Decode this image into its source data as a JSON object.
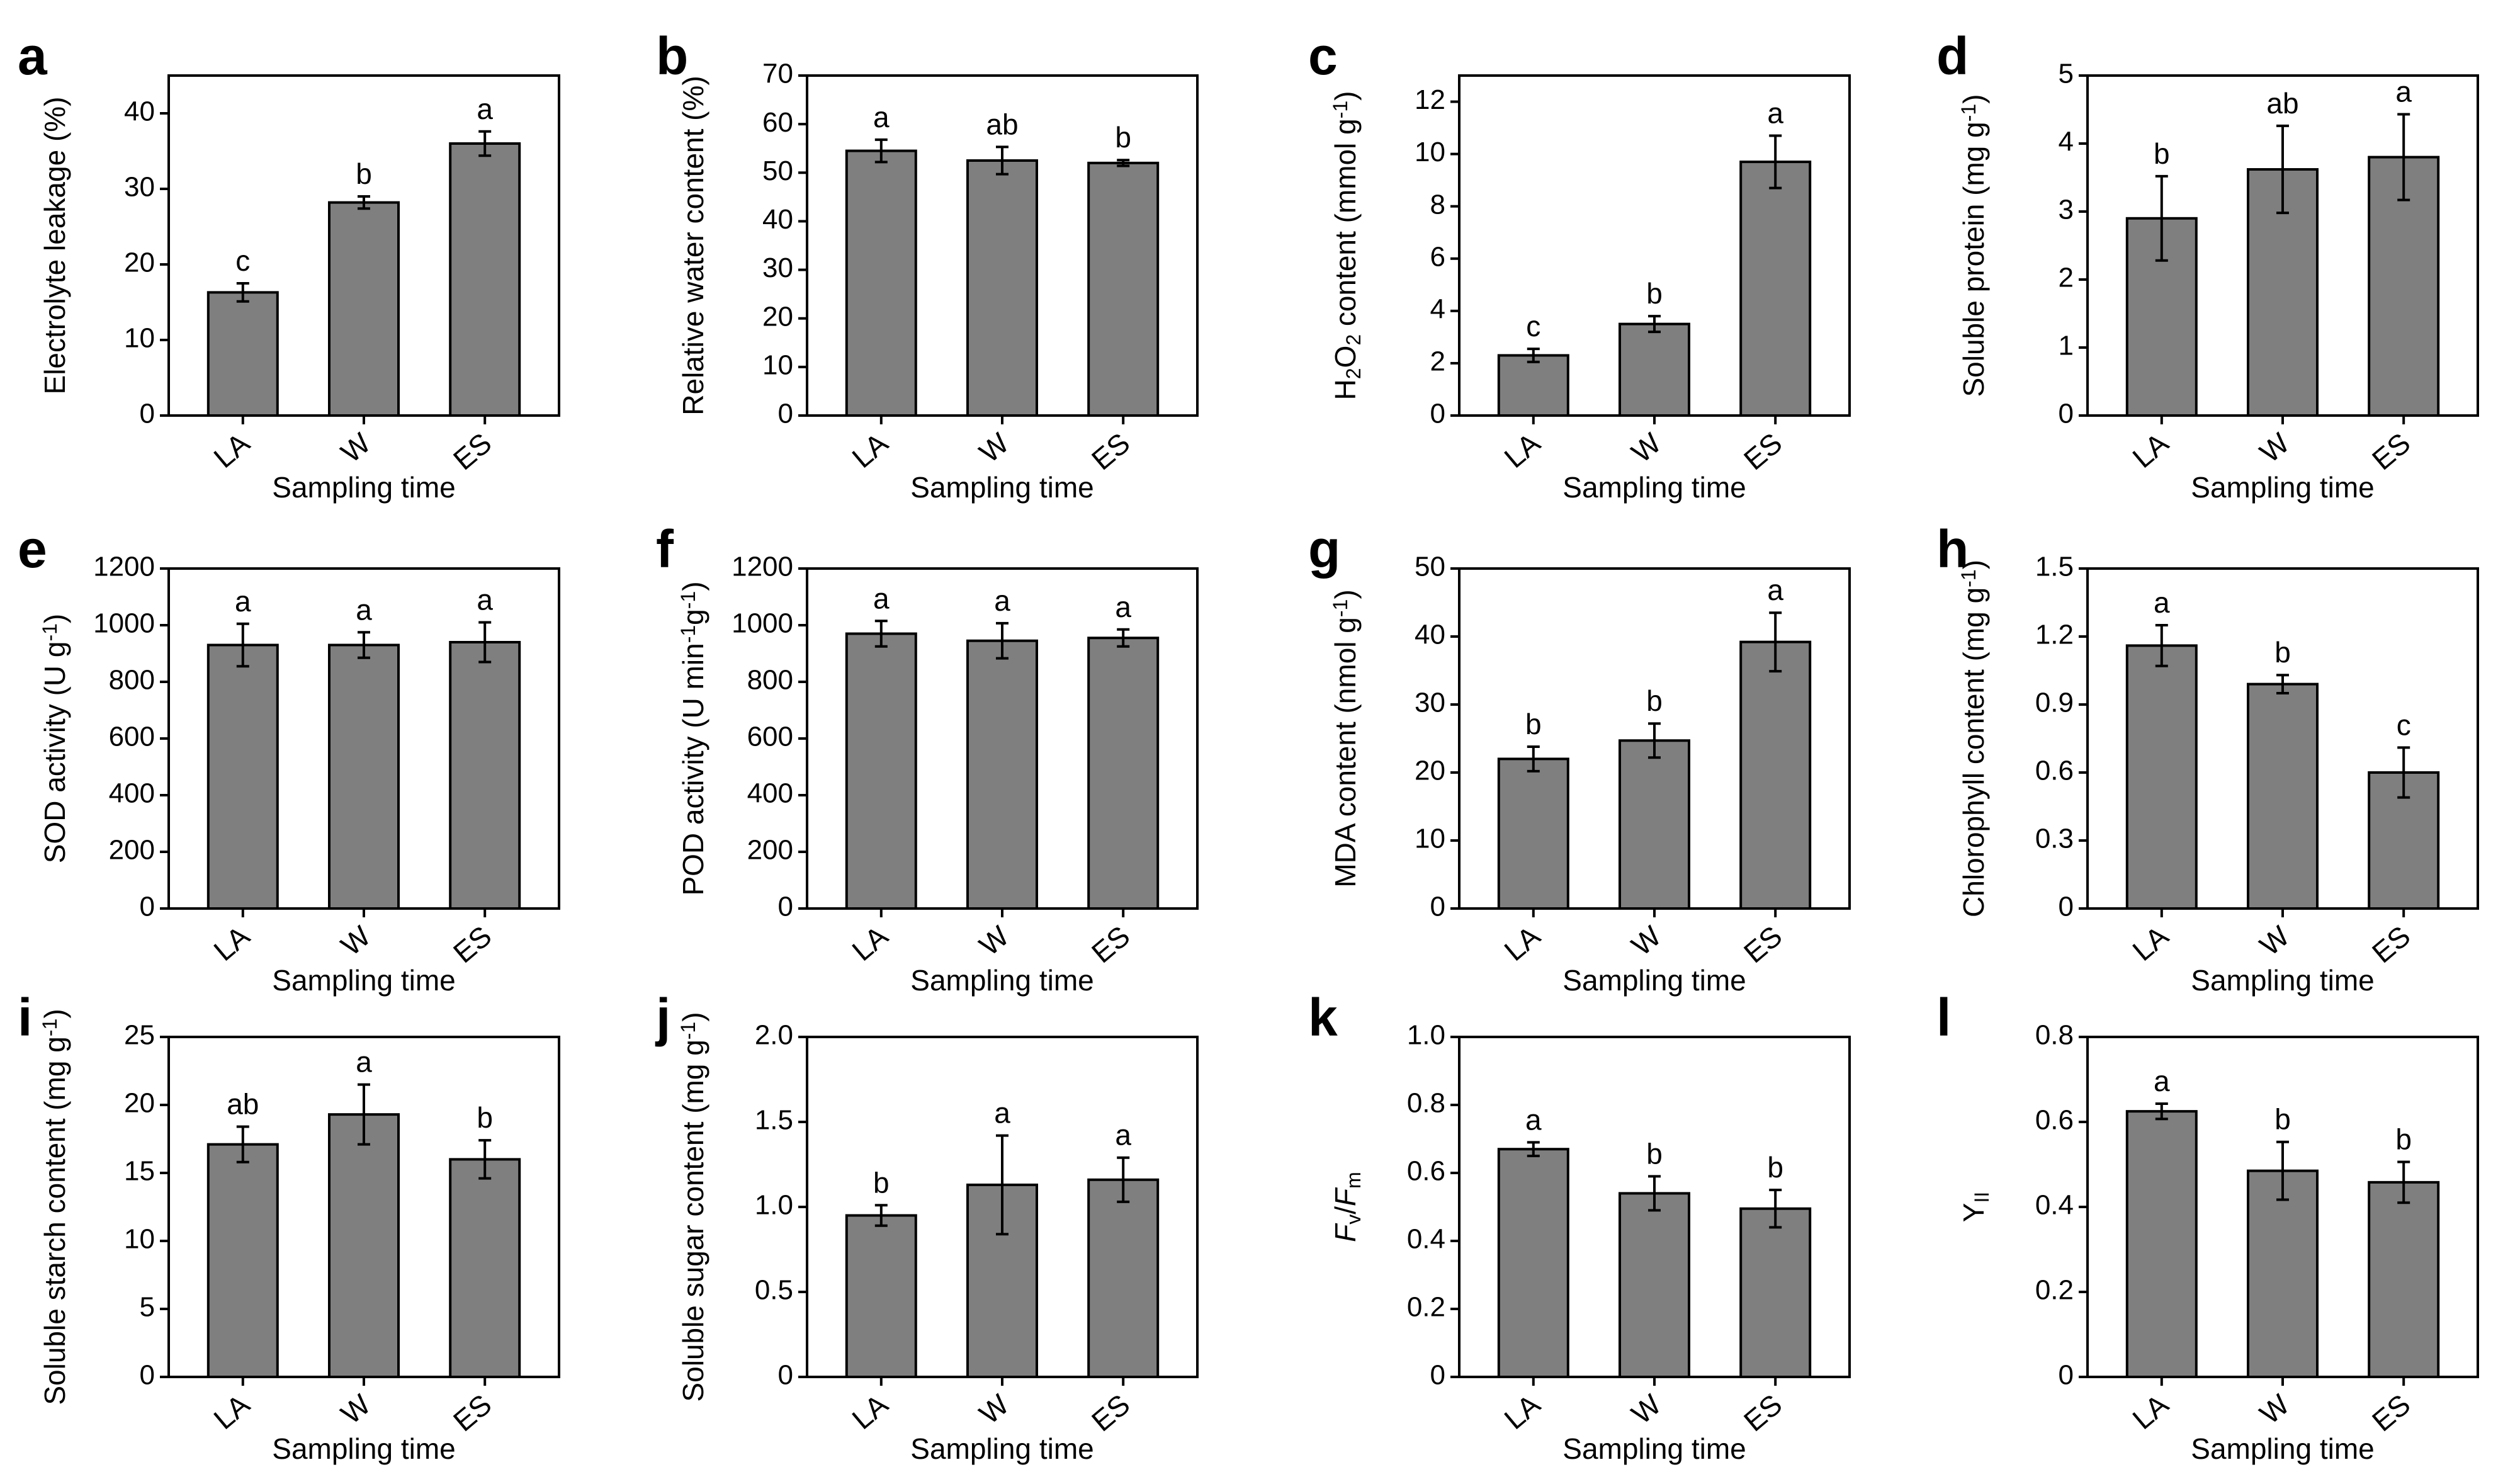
{
  "colors": {
    "bar_fill": "#7f7f7f",
    "stroke": "#000000",
    "background": "#ffffff"
  },
  "chart_data": [
    {
      "panel": "a",
      "type": "bar",
      "categories": [
        "LA",
        "W",
        "ES"
      ],
      "values": [
        16.3,
        28.2,
        36.0
      ],
      "errors": [
        1.2,
        0.8,
        1.6
      ],
      "letters": [
        "c",
        "b",
        "a"
      ],
      "ylabel": "Electrolyte leakage (%)",
      "ylabel_parts": [
        {
          "t": "Electrolyte leakage (%)"
        }
      ],
      "xlabel": "Sampling time",
      "ylim": [
        0,
        45
      ],
      "yticks": [
        0,
        10,
        20,
        30,
        40
      ],
      "ytick_labels": [
        "0",
        "10",
        "20",
        "30",
        "40"
      ]
    },
    {
      "panel": "b",
      "type": "bar",
      "categories": [
        "LA",
        "W",
        "ES"
      ],
      "values": [
        54.5,
        52.5,
        52.0
      ],
      "errors": [
        2.3,
        2.8,
        0.6
      ],
      "letters": [
        "a",
        "ab",
        "b"
      ],
      "ylabel": "Relative water content (%)",
      "ylabel_parts": [
        {
          "t": "Relative water content (%)"
        }
      ],
      "xlabel": "Sampling time",
      "ylim": [
        0,
        70
      ],
      "yticks": [
        0,
        10,
        20,
        30,
        40,
        50,
        60,
        70
      ],
      "ytick_labels": [
        "0",
        "10",
        "20",
        "30",
        "40",
        "50",
        "60",
        "70"
      ]
    },
    {
      "panel": "c",
      "type": "bar",
      "categories": [
        "LA",
        "W",
        "ES"
      ],
      "values": [
        2.3,
        3.5,
        9.7
      ],
      "errors": [
        0.25,
        0.3,
        1.0
      ],
      "letters": [
        "c",
        "b",
        "a"
      ],
      "ylabel": "H2O2 content (mmol g-1)",
      "ylabel_parts": [
        {
          "t": "H"
        },
        {
          "t": "2",
          "sub": true
        },
        {
          "t": "O"
        },
        {
          "t": "2",
          "sub": true
        },
        {
          "t": " content (mmol g"
        },
        {
          "t": "-1",
          "sup": true
        },
        {
          "t": ")"
        }
      ],
      "xlabel": "Sampling time",
      "ylim": [
        0,
        13
      ],
      "yticks": [
        0,
        2,
        4,
        6,
        8,
        10,
        12
      ],
      "ytick_labels": [
        "0",
        "2",
        "4",
        "6",
        "8",
        "10",
        "12"
      ]
    },
    {
      "panel": "d",
      "type": "bar",
      "categories": [
        "LA",
        "W",
        "ES"
      ],
      "values": [
        2.9,
        3.62,
        3.8
      ],
      "errors": [
        0.62,
        0.64,
        0.63
      ],
      "letters": [
        "b",
        "ab",
        "a"
      ],
      "ylabel": "Soluble protein (mg g-1)",
      "ylabel_parts": [
        {
          "t": "Soluble protein (mg g"
        },
        {
          "t": "-1",
          "sup": true
        },
        {
          "t": ")"
        }
      ],
      "xlabel": "Sampling time",
      "ylim": [
        0,
        5
      ],
      "yticks": [
        0,
        1,
        2,
        3,
        4,
        5
      ],
      "ytick_labels": [
        "0",
        "1",
        "2",
        "3",
        "4",
        "5"
      ]
    },
    {
      "panel": "e",
      "type": "bar",
      "categories": [
        "LA",
        "W",
        "ES"
      ],
      "values": [
        930,
        930,
        940
      ],
      "errors": [
        75,
        45,
        70
      ],
      "letters": [
        "a",
        "a",
        "a"
      ],
      "ylabel": "SOD activity (U g-1)",
      "ylabel_parts": [
        {
          "t": "SOD activity (U g"
        },
        {
          "t": "-1",
          "sup": true
        },
        {
          "t": ")"
        }
      ],
      "xlabel": "Sampling time",
      "ylim": [
        0,
        1200
      ],
      "yticks": [
        0,
        200,
        400,
        600,
        800,
        1000,
        1200
      ],
      "ytick_labels": [
        "0",
        "200",
        "400",
        "600",
        "800",
        "1000",
        "1200"
      ]
    },
    {
      "panel": "f",
      "type": "bar",
      "categories": [
        "LA",
        "W",
        "ES"
      ],
      "values": [
        970,
        945,
        955
      ],
      "errors": [
        45,
        62,
        30
      ],
      "letters": [
        "a",
        "a",
        "a"
      ],
      "ylabel": "POD activity (U min-1g-1)",
      "ylabel_parts": [
        {
          "t": "POD activity (U min"
        },
        {
          "t": "-1",
          "sup": true
        },
        {
          "t": "g"
        },
        {
          "t": "-1",
          "sup": true
        },
        {
          "t": ")"
        }
      ],
      "xlabel": "Sampling time",
      "ylim": [
        0,
        1200
      ],
      "yticks": [
        0,
        200,
        400,
        600,
        800,
        1000,
        1200
      ],
      "ytick_labels": [
        "0",
        "200",
        "400",
        "600",
        "800",
        "1000",
        "1200"
      ]
    },
    {
      "panel": "g",
      "type": "bar",
      "categories": [
        "LA",
        "W",
        "ES"
      ],
      "values": [
        22,
        24.7,
        39.2
      ],
      "errors": [
        1.8,
        2.5,
        4.3
      ],
      "letters": [
        "b",
        "b",
        "a"
      ],
      "ylabel": "MDA content (nmol g-1)",
      "ylabel_parts": [
        {
          "t": "MDA content (nmol g"
        },
        {
          "t": "-1",
          "sup": true
        },
        {
          "t": ")"
        }
      ],
      "xlabel": "Sampling time",
      "ylim": [
        0,
        50
      ],
      "yticks": [
        0,
        10,
        20,
        30,
        40,
        50
      ],
      "ytick_labels": [
        "0",
        "10",
        "20",
        "30",
        "40",
        "50"
      ]
    },
    {
      "panel": "h",
      "type": "bar",
      "categories": [
        "LA",
        "W",
        "ES"
      ],
      "values": [
        1.16,
        0.99,
        0.6
      ],
      "errors": [
        0.09,
        0.04,
        0.11
      ],
      "letters": [
        "a",
        "b",
        "c"
      ],
      "ylabel": "Chlorophyll content (mg g-1)",
      "ylabel_parts": [
        {
          "t": "Chlorophyll content (mg g"
        },
        {
          "t": "-1",
          "sup": true
        },
        {
          "t": ")"
        }
      ],
      "xlabel": "Sampling time",
      "ylim": [
        0,
        1.5
      ],
      "yticks": [
        0,
        0.3,
        0.6,
        0.9,
        1.2,
        1.5
      ],
      "ytick_labels": [
        "0",
        "0.3",
        "0.6",
        "0.9",
        "1.2",
        "1.5"
      ]
    },
    {
      "panel": "i",
      "type": "bar",
      "categories": [
        "LA",
        "W",
        "ES"
      ],
      "values": [
        17.1,
        19.3,
        16.0
      ],
      "errors": [
        1.3,
        2.2,
        1.4
      ],
      "letters": [
        "ab",
        "a",
        "b"
      ],
      "ylabel": "Soluble starch content (mg g-1)",
      "ylabel_parts": [
        {
          "t": "Soluble starch content (mg g"
        },
        {
          "t": "-1",
          "sup": true
        },
        {
          "t": ")"
        }
      ],
      "xlabel": "Sampling time",
      "ylim": [
        0,
        25
      ],
      "yticks": [
        0,
        5,
        10,
        15,
        20,
        25
      ],
      "ytick_labels": [
        "0",
        "5",
        "10",
        "15",
        "20",
        "25"
      ]
    },
    {
      "panel": "j",
      "type": "bar",
      "categories": [
        "LA",
        "W",
        "ES"
      ],
      "values": [
        0.95,
        1.13,
        1.16
      ],
      "errors": [
        0.06,
        0.29,
        0.13
      ],
      "letters": [
        "b",
        "a",
        "a"
      ],
      "ylabel": "Soluble sugar content (mg g-1)",
      "ylabel_parts": [
        {
          "t": "Soluble sugar content (mg g"
        },
        {
          "t": "-1",
          "sup": true
        },
        {
          "t": ")"
        }
      ],
      "xlabel": "Sampling time",
      "ylim": [
        0,
        2.0
      ],
      "yticks": [
        0,
        0.5,
        1.0,
        1.5,
        2.0
      ],
      "ytick_labels": [
        "0",
        "0.5",
        "1.0",
        "1.5",
        "2.0"
      ]
    },
    {
      "panel": "k",
      "type": "bar",
      "categories": [
        "LA",
        "W",
        "ES"
      ],
      "values": [
        0.67,
        0.54,
        0.495
      ],
      "errors": [
        0.02,
        0.05,
        0.055
      ],
      "letters": [
        "a",
        "b",
        "b"
      ],
      "ylabel": "Fv/Fm",
      "ylabel_parts": [
        {
          "t": "F",
          "italic": true
        },
        {
          "t": "v",
          "sub": true
        },
        {
          "t": "/"
        },
        {
          "t": "F",
          "italic": true
        },
        {
          "t": "m",
          "sub": true
        }
      ],
      "xlabel": "Sampling time",
      "ylim": [
        0,
        1.0
      ],
      "yticks": [
        0,
        0.2,
        0.4,
        0.6,
        0.8,
        1.0
      ],
      "ytick_labels": [
        "0",
        "0.2",
        "0.4",
        "0.6",
        "0.8",
        "1.0"
      ]
    },
    {
      "panel": "l",
      "type": "bar",
      "categories": [
        "LA",
        "W",
        "ES"
      ],
      "values": [
        0.625,
        0.485,
        0.458
      ],
      "errors": [
        0.018,
        0.068,
        0.048
      ],
      "letters": [
        "a",
        "b",
        "b"
      ],
      "ylabel": "YII",
      "ylabel_parts": [
        {
          "t": "Y"
        },
        {
          "t": "II",
          "sub": true
        }
      ],
      "xlabel": "Sampling time",
      "ylim": [
        0,
        0.8
      ],
      "yticks": [
        0,
        0.2,
        0.4,
        0.6,
        0.8
      ],
      "ytick_labels": [
        "0",
        "0.2",
        "0.4",
        "0.6",
        "0.8"
      ]
    }
  ]
}
